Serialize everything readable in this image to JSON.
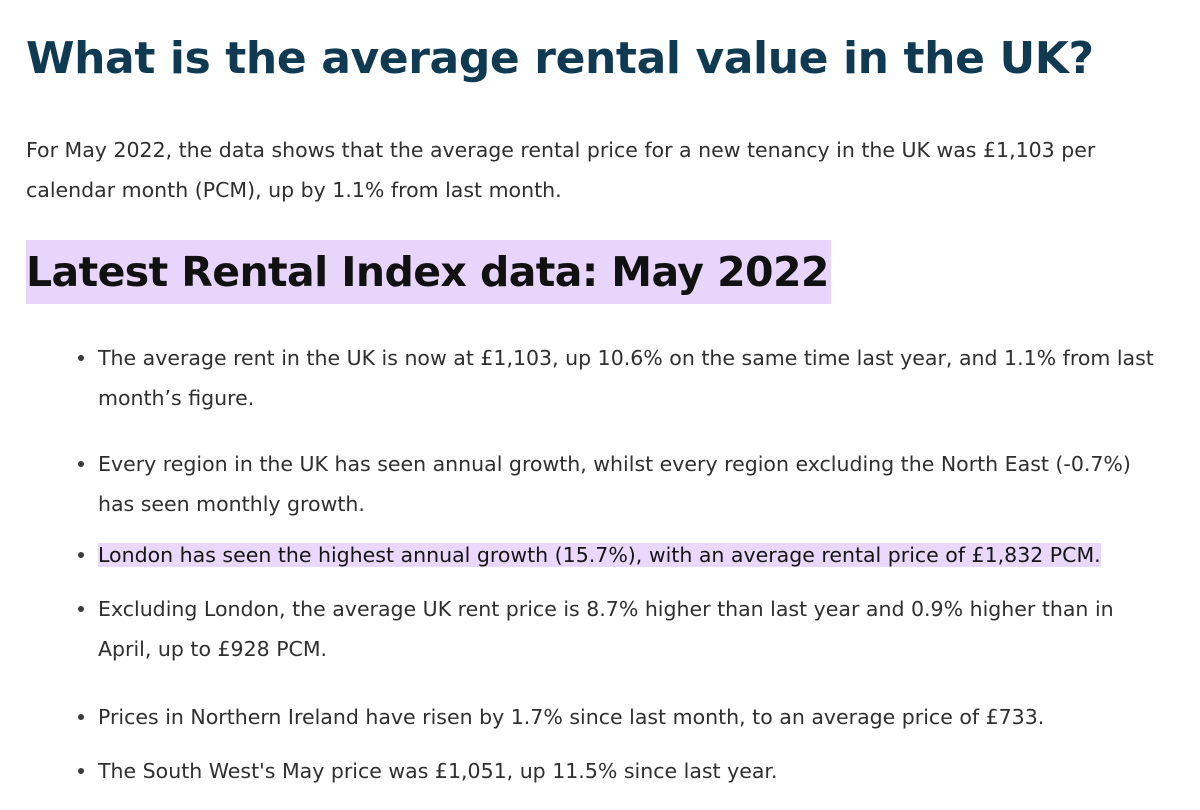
{
  "article": {
    "heading": "What is the average rental value in the UK?",
    "intro": "For May 2022, the data shows that the average rental price for a new tenancy in the UK was £1,103 per calendar month (PCM), up by 1.1% from last month.",
    "section_heading": "Latest Rental Index data: May 2022",
    "bullets": [
      "The average rent in the UK is now at £1,103, up 10.6% on the same time last year, and 1.1% from last month’s figure.",
      "Every region in the UK has seen annual growth, whilst every region excluding the North East (-0.7%) has seen monthly growth.",
      "London has seen the highest annual growth (15.7%), with an average rental price of £1,832 PCM.",
      "Excluding London, the average UK rent price is 8.7% higher than last year and 0.9% higher than in April, up to £928 PCM.",
      "Prices in Northern Ireland have risen by 1.7% since last month, to an average price of £733.",
      "The South West's May price was £1,051, up 11.5% since last year."
    ]
  },
  "colors": {
    "heading": "#0f3a52",
    "highlight": "#e8d5fb",
    "text": "#2f2f2f"
  }
}
